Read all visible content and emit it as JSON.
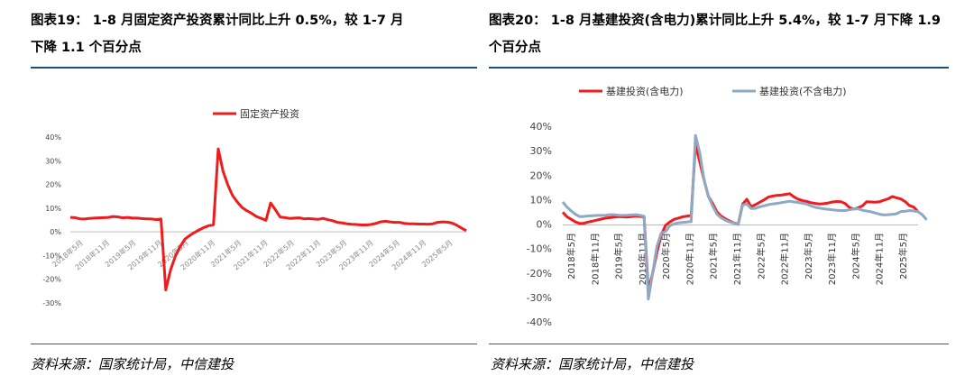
{
  "left": {
    "title_line1": "图表19：  1-8 月固定资产投资累计同比上升 0.5%，较 1-7 月",
    "title_line2": "下降 1.1 个百分点",
    "source": "资料来源：国家统计局，中信建投"
  },
  "right": {
    "title_line1": "图表20：  1-8 月基建投资(含电力)累计同比上升 5.4%，较 1-7 月下降 1.9",
    "title_line2": "个百分点",
    "source": "资料来源：国家统计局，中信建投"
  },
  "chart_data": [
    {
      "type": "line",
      "ylim": [
        -30,
        40
      ],
      "yticks": [
        40,
        30,
        20,
        10,
        0,
        -10,
        -20,
        -30
      ],
      "ytick_labels": [
        "40%",
        "30%",
        "20%",
        "10%",
        "0%",
        "-10%",
        "-20%",
        "-30%"
      ],
      "xtick_labels": [
        "2018年5月",
        "2018年11月",
        "2019年5月",
        "2019年11月",
        "2020年5月",
        "2020年11月",
        "2021年5月",
        "2021年11月",
        "2022年5月",
        "2022年11月",
        "2023年5月",
        "2023年11月",
        "2024年5月",
        "2024年11月",
        "2025年5月"
      ],
      "legend_position": "top-center",
      "series": [
        {
          "name": "固定资产投资",
          "color": "#ee1c1c",
          "values": [
            6.1,
            6.0,
            5.5,
            5.4,
            5.7,
            5.8,
            5.9,
            6.0,
            6.1,
            6.5,
            6.3,
            5.9,
            6.1,
            5.8,
            5.8,
            5.6,
            5.5,
            5.4,
            5.2,
            5.4,
            -24.5,
            -16.1,
            -10.3,
            -6.3,
            -3.1,
            -1.6,
            -0.3,
            0.8,
            1.8,
            2.6,
            3.0,
            35.0,
            25.6,
            19.9,
            15.4,
            12.6,
            10.3,
            8.9,
            7.8,
            6.5,
            5.7,
            4.9,
            12.2,
            9.3,
            6.2,
            6.0,
            5.7,
            5.8,
            5.9,
            5.5,
            5.6,
            5.4,
            5.3,
            5.7,
            5.1,
            4.7,
            4.0,
            3.8,
            3.4,
            3.2,
            3.1,
            2.9,
            2.9,
            3.1,
            3.5,
            4.2,
            4.5,
            4.2,
            4.0,
            4.0,
            3.6,
            3.4,
            3.4,
            3.3,
            3.3,
            3.2,
            3.4,
            4.0,
            4.2,
            4.1,
            3.7,
            2.8,
            1.6,
            0.5
          ]
        }
      ]
    },
    {
      "type": "line",
      "ylim": [
        -40,
        40
      ],
      "yticks": [
        40,
        30,
        20,
        10,
        0,
        -10,
        -20,
        -30,
        -40
      ],
      "ytick_labels": [
        "40%",
        "30%",
        "20%",
        "10%",
        "0%",
        "-10%",
        "-20%",
        "-30%",
        "-40%"
      ],
      "xtick_labels": [
        "2018年5月",
        "2018年11月",
        "2019年5月",
        "2019年11月",
        "2020年5月",
        "2020年11月",
        "2021年5月",
        "2021年11月",
        "2022年5月",
        "2022年11月",
        "2023年5月",
        "2023年11月",
        "2024年5月",
        "2024年11月",
        "2025年5月"
      ],
      "legend_position": "top-center",
      "series": [
        {
          "name": "基建投资(含电力)",
          "color": "#ee1c1c",
          "values": [
            5.2,
            3.3,
            2.3,
            1.2,
            0.6,
            0.7,
            1.2,
            1.6,
            2.0,
            2.4,
            2.8,
            3.0,
            3.2,
            3.4,
            3.3,
            3.2,
            3.4,
            3.6,
            3.5,
            3.3,
            -26.9,
            -19.7,
            -11.3,
            -4.1,
            -0.2,
            1.2,
            2.3,
            2.8,
            3.3,
            3.6,
            3.9,
            33.0,
            25.8,
            18.4,
            11.8,
            8.8,
            5.4,
            3.6,
            2.5,
            1.6,
            0.8,
            0.4,
            8.5,
            10.5,
            7.5,
            8.3,
            9.3,
            10.2,
            11.4,
            11.8,
            12.1,
            12.2,
            12.5,
            12.8,
            11.5,
            10.5,
            10.0,
            9.6,
            9.1,
            8.8,
            8.6,
            8.7,
            9.0,
            9.4,
            9.6,
            9.5,
            8.7,
            7.1,
            6.5,
            7.0,
            7.8,
            9.5,
            9.4,
            9.3,
            9.5,
            10.1,
            10.7,
            11.6,
            11.1,
            10.6,
            9.5,
            7.9,
            7.3,
            5.4
          ]
        },
        {
          "name": "基建投资(不含电力)",
          "color": "#8da9c4",
          "values": [
            9.4,
            7.3,
            5.7,
            4.3,
            3.4,
            3.5,
            3.7,
            3.8,
            3.9,
            3.9,
            4.0,
            4.2,
            4.2,
            4.0,
            3.9,
            4.0,
            4.1,
            4.2,
            4.0,
            3.5,
            -30.3,
            -19.7,
            -8.8,
            -3.3,
            -2.7,
            -0.3,
            0.4,
            0.9,
            1.0,
            1.2,
            1.4,
            36.6,
            29.5,
            18.4,
            11.8,
            7.8,
            4.5,
            2.9,
            1.9,
            1.2,
            0.7,
            0.2,
            8.1,
            8.6,
            6.7,
            6.8,
            7.4,
            7.8,
            8.3,
            8.6,
            8.8,
            9.1,
            9.4,
            9.7,
            9.4,
            9.2,
            8.9,
            8.5,
            7.8,
            7.2,
            6.9,
            6.6,
            6.4,
            6.2,
            6.0,
            5.9,
            5.9,
            6.2,
            6.6,
            6.6,
            6.0,
            5.7,
            5.4,
            4.9,
            4.4,
            4.1,
            4.2,
            4.3,
            4.6,
            5.5,
            5.6,
            5.9,
            5.7,
            5.4,
            4.2,
            2.1
          ]
        }
      ]
    }
  ]
}
